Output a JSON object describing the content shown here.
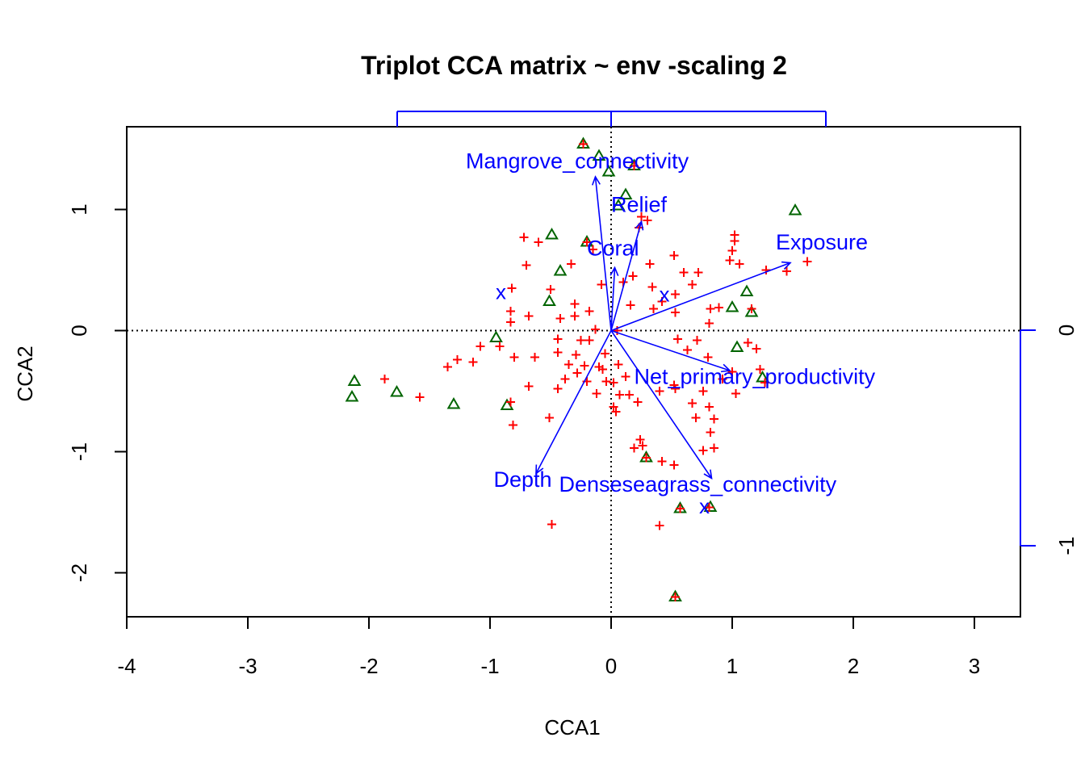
{
  "chart_data": {
    "type": "scatter",
    "title": "Triplot CCA matrix ~ env -scaling 2",
    "xlabel": "CCA1",
    "ylabel": "CCA2",
    "xlim": [
      -4,
      3.4
    ],
    "ylim": [
      -2.37,
      1.69
    ],
    "x_ticks": [
      -4,
      -3,
      -2,
      -1,
      0,
      1,
      2,
      3
    ],
    "y_ticks": [
      -2,
      -1,
      0,
      1
    ],
    "x_tick_labels": [
      "-4",
      "-3",
      "-2",
      "-1",
      "0",
      "1",
      "2",
      "3"
    ],
    "y_tick_labels": [
      "-2",
      "-1",
      "0",
      "1"
    ],
    "right_axis": {
      "ticks": [
        0,
        -1
      ],
      "labels": [
        "0",
        "-1"
      ],
      "color": "#0000ff"
    },
    "colors": {
      "sites": "#ff0000",
      "species": "#006400",
      "env": "#0000ff",
      "axes": "#000000"
    },
    "env_arrows": [
      {
        "name": "Mangrove_connectivity",
        "x": -0.13,
        "y": 1.27,
        "label_x": -1.2,
        "label_y": 1.34
      },
      {
        "name": "Relief",
        "x": 0.25,
        "y": 0.9,
        "label_x": 0.0,
        "label_y": 0.98
      },
      {
        "name": "Coral",
        "x": 0.03,
        "y": 0.52,
        "label_x": -0.2,
        "label_y": 0.62
      },
      {
        "name": "Exposure",
        "x": 1.48,
        "y": 0.56,
        "label_x": 1.36,
        "label_y": 0.67
      },
      {
        "name": "Net_primary_productivity",
        "x": 0.98,
        "y": -0.33,
        "label_x": 0.19,
        "label_y": -0.44
      },
      {
        "name": "Depth",
        "x": -0.62,
        "y": -1.18,
        "label_x": -0.97,
        "label_y": -1.29
      },
      {
        "name": "Denseseagrass_connectivity",
        "x": 0.83,
        "y": -1.22,
        "label_x": -0.43,
        "label_y": -1.33
      }
    ],
    "centroids": [
      {
        "label": "x",
        "x": -0.91,
        "y": 0.32
      },
      {
        "label": "x",
        "x": 0.44,
        "y": 0.3
      },
      {
        "label": "x",
        "x": 0.77,
        "y": -1.45
      }
    ],
    "species_points": [
      {
        "x": -0.23,
        "y": 1.54
      },
      {
        "x": -0.1,
        "y": 1.44
      },
      {
        "x": 0.19,
        "y": 1.36
      },
      {
        "x": -0.02,
        "y": 1.31
      },
      {
        "x": 0.12,
        "y": 1.12
      },
      {
        "x": 0.06,
        "y": 1.03
      },
      {
        "x": 1.52,
        "y": 0.99
      },
      {
        "x": -0.49,
        "y": 0.79
      },
      {
        "x": -0.2,
        "y": 0.73
      },
      {
        "x": -0.42,
        "y": 0.49
      },
      {
        "x": -0.51,
        "y": 0.24
      },
      {
        "x": 1.12,
        "y": 0.32
      },
      {
        "x": 1.0,
        "y": 0.19
      },
      {
        "x": 1.16,
        "y": 0.15
      },
      {
        "x": -0.95,
        "y": -0.06
      },
      {
        "x": 1.04,
        "y": -0.14
      },
      {
        "x": 1.25,
        "y": -0.39
      },
      {
        "x": -2.12,
        "y": -0.42
      },
      {
        "x": -1.77,
        "y": -0.51
      },
      {
        "x": -2.14,
        "y": -0.55
      },
      {
        "x": -1.3,
        "y": -0.61
      },
      {
        "x": -0.86,
        "y": -0.62
      },
      {
        "x": 0.29,
        "y": -1.05
      },
      {
        "x": 0.57,
        "y": -1.47
      },
      {
        "x": 0.82,
        "y": -1.46
      },
      {
        "x": 0.53,
        "y": -2.2
      }
    ],
    "site_points": [
      {
        "x": -0.23,
        "y": 1.54
      },
      {
        "x": 0.19,
        "y": 1.36
      },
      {
        "x": 0.25,
        "y": 0.94
      },
      {
        "x": 0.3,
        "y": 0.91
      },
      {
        "x": 0.23,
        "y": 0.85
      },
      {
        "x": 1.02,
        "y": 0.79
      },
      {
        "x": 1.02,
        "y": 0.74
      },
      {
        "x": -0.72,
        "y": 0.77
      },
      {
        "x": -0.6,
        "y": 0.73
      },
      {
        "x": -0.2,
        "y": 0.73
      },
      {
        "x": -0.15,
        "y": 0.67
      },
      {
        "x": 1.0,
        "y": 0.66
      },
      {
        "x": 0.98,
        "y": 0.58
      },
      {
        "x": 0.52,
        "y": 0.62
      },
      {
        "x": -0.7,
        "y": 0.54
      },
      {
        "x": -0.33,
        "y": 0.55
      },
      {
        "x": 0.32,
        "y": 0.55
      },
      {
        "x": 0.6,
        "y": 0.48
      },
      {
        "x": 0.18,
        "y": 0.45
      },
      {
        "x": 0.72,
        "y": 0.48
      },
      {
        "x": 1.06,
        "y": 0.55
      },
      {
        "x": 1.28,
        "y": 0.5
      },
      {
        "x": 1.45,
        "y": 0.49
      },
      {
        "x": 1.62,
        "y": 0.57
      },
      {
        "x": 0.1,
        "y": 0.4
      },
      {
        "x": -0.08,
        "y": 0.38
      },
      {
        "x": 0.34,
        "y": 0.36
      },
      {
        "x": 0.67,
        "y": 0.38
      },
      {
        "x": -0.82,
        "y": 0.35
      },
      {
        "x": -0.5,
        "y": 0.34
      },
      {
        "x": 0.42,
        "y": 0.24
      },
      {
        "x": 0.53,
        "y": 0.3
      },
      {
        "x": -0.83,
        "y": 0.16
      },
      {
        "x": -0.83,
        "y": 0.07
      },
      {
        "x": -0.92,
        "y": -0.13
      },
      {
        "x": -0.3,
        "y": 0.22
      },
      {
        "x": -0.18,
        "y": 0.16
      },
      {
        "x": -0.68,
        "y": 0.12
      },
      {
        "x": -0.42,
        "y": 0.1
      },
      {
        "x": -0.3,
        "y": 0.12
      },
      {
        "x": 0.16,
        "y": 0.21
      },
      {
        "x": 0.35,
        "y": 0.18
      },
      {
        "x": 0.82,
        "y": 0.18
      },
      {
        "x": 0.89,
        "y": 0.19
      },
      {
        "x": 0.53,
        "y": 0.15
      },
      {
        "x": 0.81,
        "y": 0.06
      },
      {
        "x": 1.16,
        "y": 0.18
      },
      {
        "x": -0.13,
        "y": 0.01
      },
      {
        "x": 0.05,
        "y": 0.0
      },
      {
        "x": -0.44,
        "y": -0.07
      },
      {
        "x": -0.25,
        "y": -0.08
      },
      {
        "x": -0.18,
        "y": -0.08
      },
      {
        "x": 0.55,
        "y": -0.07
      },
      {
        "x": 0.71,
        "y": -0.08
      },
      {
        "x": 1.13,
        "y": -0.1
      },
      {
        "x": -1.08,
        "y": -0.13
      },
      {
        "x": -0.44,
        "y": -0.18
      },
      {
        "x": -0.29,
        "y": -0.2
      },
      {
        "x": -0.05,
        "y": -0.19
      },
      {
        "x": 0.63,
        "y": -0.16
      },
      {
        "x": 0.8,
        "y": -0.22
      },
      {
        "x": 1.2,
        "y": -0.15
      },
      {
        "x": -0.8,
        "y": -0.22
      },
      {
        "x": -0.63,
        "y": -0.22
      },
      {
        "x": -1.27,
        "y": -0.24
      },
      {
        "x": -1.14,
        "y": -0.26
      },
      {
        "x": -1.35,
        "y": -0.3
      },
      {
        "x": -0.35,
        "y": -0.28
      },
      {
        "x": -0.22,
        "y": -0.29
      },
      {
        "x": -0.1,
        "y": -0.3
      },
      {
        "x": 0.06,
        "y": -0.28
      },
      {
        "x": 1.23,
        "y": -0.32
      },
      {
        "x": -0.28,
        "y": -0.35
      },
      {
        "x": -0.07,
        "y": -0.32
      },
      {
        "x": 1.0,
        "y": -0.34
      },
      {
        "x": 0.12,
        "y": -0.38
      },
      {
        "x": -0.38,
        "y": -0.4
      },
      {
        "x": -0.2,
        "y": -0.42
      },
      {
        "x": -0.04,
        "y": -0.42
      },
      {
        "x": 0.02,
        "y": -0.43
      },
      {
        "x": 1.27,
        "y": -0.43
      },
      {
        "x": -0.68,
        "y": -0.46
      },
      {
        "x": 0.52,
        "y": -0.45
      },
      {
        "x": 0.92,
        "y": -0.4
      },
      {
        "x": -0.44,
        "y": -0.48
      },
      {
        "x": -0.12,
        "y": -0.52
      },
      {
        "x": 0.15,
        "y": -0.53
      },
      {
        "x": 0.4,
        "y": -0.5
      },
      {
        "x": 0.53,
        "y": -0.48
      },
      {
        "x": 0.76,
        "y": -0.5
      },
      {
        "x": 1.03,
        "y": -0.52
      },
      {
        "x": -1.87,
        "y": -0.4
      },
      {
        "x": -1.58,
        "y": -0.55
      },
      {
        "x": -0.83,
        "y": -0.59
      },
      {
        "x": 0.07,
        "y": -0.53
      },
      {
        "x": 0.22,
        "y": -0.59
      },
      {
        "x": 0.67,
        "y": -0.6
      },
      {
        "x": 0.81,
        "y": -0.63
      },
      {
        "x": 0.02,
        "y": -0.63
      },
      {
        "x": 0.04,
        "y": -0.67
      },
      {
        "x": 0.7,
        "y": -0.72
      },
      {
        "x": 0.85,
        "y": -0.73
      },
      {
        "x": -0.51,
        "y": -0.72
      },
      {
        "x": -0.81,
        "y": -0.78
      },
      {
        "x": 0.82,
        "y": -0.84
      },
      {
        "x": 0.24,
        "y": -0.9
      },
      {
        "x": 0.26,
        "y": -0.95
      },
      {
        "x": 0.85,
        "y": -0.97
      },
      {
        "x": 0.19,
        "y": -0.97
      },
      {
        "x": 0.76,
        "y": -0.99
      },
      {
        "x": 0.29,
        "y": -1.05
      },
      {
        "x": 0.42,
        "y": -1.08
      },
      {
        "x": 0.52,
        "y": -1.11
      },
      {
        "x": 0.57,
        "y": -1.47
      },
      {
        "x": 0.81,
        "y": -1.46
      },
      {
        "x": 0.4,
        "y": -1.61
      },
      {
        "x": -0.49,
        "y": -1.6
      },
      {
        "x": 0.53,
        "y": -2.2
      }
    ]
  }
}
